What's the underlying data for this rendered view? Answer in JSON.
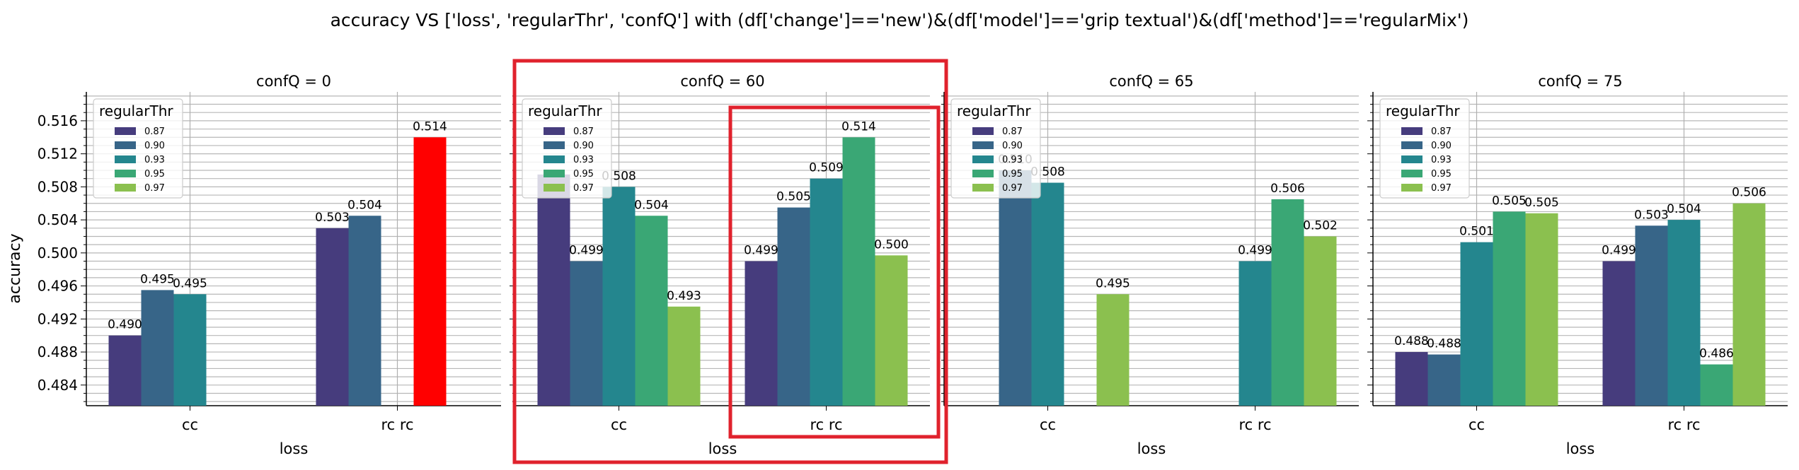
{
  "title": "accuracy VS ['loss', 'regularThr', 'confQ'] with (df['change']=='new')&(df['model']=='grip textual')&(df['method']=='regularMix')",
  "colors": {
    "series": [
      "#463c7d",
      "#376588",
      "#24868e",
      "#3aa775",
      "#8bc04f"
    ],
    "highlight_bar": "#ff0000",
    "highlight_box": "#e0222d",
    "grid": "#b0b0b0"
  },
  "highlights": [
    {
      "type": "box",
      "target": "panel-1"
    },
    {
      "type": "box",
      "target": "panel-1-group-rc rc"
    },
    {
      "type": "bar",
      "target": "panel-0-group-rc rc-series-0.95"
    }
  ],
  "chart_data": {
    "type": "bar",
    "title": "accuracy VS ['loss', 'regularThr', 'confQ'] with (df['change']=='new')&(df['model']=='grip textual')&(df['method']=='regularMix')",
    "ylabel": "accuracy",
    "xlabel": "loss",
    "ylim": [
      0.4815,
      0.5195
    ],
    "yticks": [
      "0.484",
      "0.488",
      "0.492",
      "0.496",
      "0.500",
      "0.504",
      "0.508",
      "0.512",
      "0.516"
    ],
    "grid": true,
    "legend": {
      "title": "regularThr",
      "placement": "top-left",
      "entries": [
        "0.87",
        "0.90",
        "0.93",
        "0.95",
        "0.97"
      ]
    },
    "categories": [
      "cc",
      "rc rc"
    ],
    "panels": [
      {
        "title": "confQ = 0",
        "series": [
          {
            "name": "0.87",
            "values": [
              0.49,
              0.503
            ]
          },
          {
            "name": "0.90",
            "values": [
              0.4955,
              0.5045
            ]
          },
          {
            "name": "0.93",
            "values": [
              0.495,
              null
            ]
          },
          {
            "name": "0.95",
            "values": [
              null,
              0.514
            ]
          },
          {
            "name": "0.97",
            "values": [
              null,
              null
            ]
          }
        ],
        "labels": [
          [
            "0.490",
            "0.503"
          ],
          [
            "0.495",
            "0.504"
          ],
          [
            "0.495",
            null
          ],
          [
            null,
            "0.514"
          ],
          [
            null,
            null
          ]
        ]
      },
      {
        "title": "confQ = 60",
        "series": [
          {
            "name": "0.87",
            "values": [
              0.5095,
              0.499
            ]
          },
          {
            "name": "0.90",
            "values": [
              0.499,
              0.5055
            ]
          },
          {
            "name": "0.93",
            "values": [
              0.508,
              0.509
            ]
          },
          {
            "name": "0.95",
            "values": [
              0.5045,
              0.514
            ]
          },
          {
            "name": "0.97",
            "values": [
              0.4935,
              0.4997
            ]
          }
        ],
        "labels": [
          [
            null,
            "0.499"
          ],
          [
            "0.499",
            "0.505"
          ],
          [
            "0.508",
            "0.509"
          ],
          [
            "0.504",
            "0.514"
          ],
          [
            "0.493",
            "0.500"
          ]
        ]
      },
      {
        "title": "confQ = 65",
        "series": [
          {
            "name": "0.87",
            "values": [
              null,
              null
            ]
          },
          {
            "name": "0.90",
            "values": [
              0.51,
              null
            ]
          },
          {
            "name": "0.93",
            "values": [
              0.5085,
              0.499
            ]
          },
          {
            "name": "0.95",
            "values": [
              null,
              0.5065
            ]
          },
          {
            "name": "0.97",
            "values": [
              0.495,
              0.502
            ]
          }
        ],
        "labels": [
          [
            null,
            null
          ],
          [
            "0.510",
            null
          ],
          [
            "0.508",
            "0.499"
          ],
          [
            null,
            "0.506"
          ],
          [
            "0.495",
            "0.502"
          ]
        ]
      },
      {
        "title": "confQ = 75",
        "series": [
          {
            "name": "0.87",
            "values": [
              0.488,
              0.499
            ]
          },
          {
            "name": "0.90",
            "values": [
              0.4877,
              0.5033
            ]
          },
          {
            "name": "0.93",
            "values": [
              0.5013,
              0.504
            ]
          },
          {
            "name": "0.95",
            "values": [
              0.505,
              0.4865
            ]
          },
          {
            "name": "0.97",
            "values": [
              0.5048,
              0.506
            ]
          }
        ],
        "labels": [
          [
            "0.488",
            "0.499"
          ],
          [
            "0.488",
            "0.503"
          ],
          [
            "0.501",
            "0.504"
          ],
          [
            "0.505",
            "0.486"
          ],
          [
            "0.505",
            "0.506"
          ]
        ]
      }
    ]
  }
}
